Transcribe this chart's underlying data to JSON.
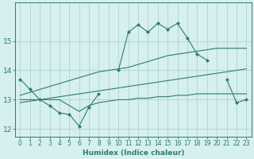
{
  "x_data": [
    0,
    1,
    2,
    3,
    4,
    5,
    6,
    7,
    8,
    9,
    10,
    11,
    12,
    13,
    14,
    15,
    16,
    17,
    18,
    19,
    20,
    21,
    22,
    23
  ],
  "line1_y": [
    13.7,
    13.35,
    13.0,
    12.8,
    12.55,
    12.5,
    12.1,
    12.75,
    13.2,
    null,
    14.0,
    15.3,
    15.55,
    15.3,
    15.6,
    15.4,
    15.6,
    15.1,
    14.55,
    14.35,
    null,
    13.7,
    12.9,
    13.0
  ],
  "line2_y": [
    12.9,
    12.95,
    13.0,
    13.05,
    13.1,
    13.15,
    13.2,
    13.25,
    13.3,
    13.35,
    13.4,
    13.45,
    13.5,
    13.55,
    13.6,
    13.65,
    13.7,
    13.75,
    13.8,
    13.85,
    13.9,
    13.95,
    14.0,
    14.05
  ],
  "line3_y": [
    13.15,
    13.25,
    13.35,
    13.45,
    13.55,
    13.65,
    13.75,
    13.85,
    13.95,
    14.0,
    14.05,
    14.1,
    14.2,
    14.3,
    14.4,
    14.5,
    14.55,
    14.6,
    14.65,
    14.7,
    14.75,
    14.75,
    14.75,
    14.75
  ],
  "line4_y": [
    13.0,
    13.0,
    13.0,
    13.0,
    13.0,
    12.8,
    12.6,
    12.8,
    12.9,
    12.95,
    13.0,
    13.0,
    13.05,
    13.05,
    13.1,
    13.1,
    13.15,
    13.15,
    13.2,
    13.2,
    13.2,
    13.2,
    13.2,
    13.2
  ],
  "color": "#2e7d6d",
  "bg_color": "#d6efef",
  "grid_color": "#aed4d4",
  "xlabel": "Humidex (Indice chaleur)",
  "ylim": [
    11.75,
    16.3
  ],
  "xlim": [
    -0.5,
    23.5
  ],
  "yticks": [
    12,
    13,
    14,
    15
  ],
  "xticks": [
    0,
    1,
    2,
    3,
    4,
    5,
    6,
    7,
    8,
    9,
    10,
    11,
    12,
    13,
    14,
    15,
    16,
    17,
    18,
    19,
    20,
    21,
    22,
    23
  ]
}
